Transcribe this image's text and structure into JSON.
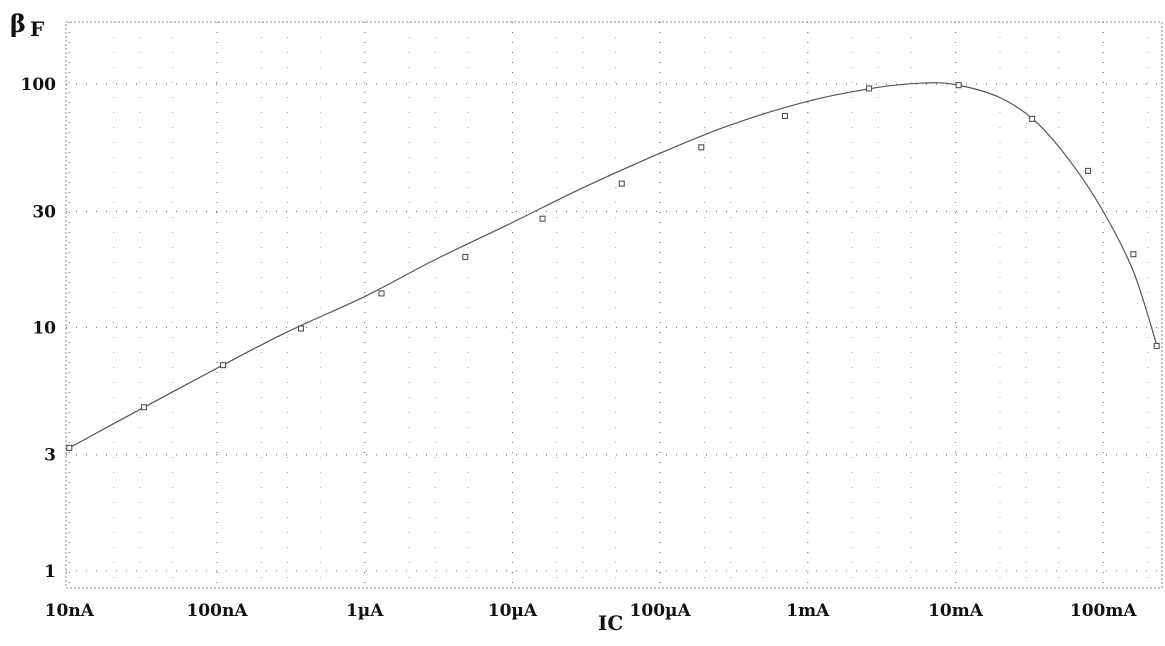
{
  "chart_data": {
    "type": "line",
    "x_scale": "log",
    "y_scale": "log",
    "xlim": [
      9.5e-09,
      0.25
    ],
    "ylim": [
      0.85,
      180
    ],
    "ylabel_symbol": "β",
    "ylabel_subscript": "F",
    "xlabel": "IC",
    "x_ticks": [
      {
        "value": 1e-08,
        "label": "10nA"
      },
      {
        "value": 1e-07,
        "label": "100nA"
      },
      {
        "value": 1e-06,
        "label": "1µA"
      },
      {
        "value": 1e-05,
        "label": "10µA"
      },
      {
        "value": 0.0001,
        "label": "100µA"
      },
      {
        "value": 0.001,
        "label": "1mA"
      },
      {
        "value": 0.01,
        "label": "10mA"
      },
      {
        "value": 0.1,
        "label": "100mA"
      }
    ],
    "y_ticks": [
      {
        "value": 1,
        "label": "1"
      },
      {
        "value": 3,
        "label": "3"
      },
      {
        "value": 10,
        "label": "10"
      },
      {
        "value": 30,
        "label": "30"
      },
      {
        "value": 100,
        "label": "100"
      }
    ],
    "grid": "dotted",
    "series": [
      {
        "color": "#555555",
        "x": [
          1e-08,
          3e-08,
          1e-07,
          3e-07,
          1e-06,
          3e-06,
          1e-05,
          3e-05,
          0.0001,
          0.0003,
          0.001,
          0.003,
          0.006,
          0.01,
          0.02,
          0.035,
          0.06,
          0.1,
          0.16,
          0.23
        ],
        "y": [
          3.2,
          4.6,
          6.8,
          9.6,
          13.4,
          19.0,
          27.0,
          37.5,
          52.0,
          68.0,
          85.0,
          97.0,
          101.0,
          99.5,
          88.0,
          70.0,
          48.0,
          30.0,
          17.0,
          8.5
        ]
      }
    ],
    "markers": {
      "x": [
        1e-08,
        3.2e-08,
        1.1e-07,
        3.7e-07,
        1.3e-06,
        4.8e-06,
        1.6e-05,
        5.5e-05,
        0.00019,
        0.0007,
        0.0026,
        0.0105,
        0.033,
        0.079,
        0.16,
        0.23
      ],
      "y": [
        3.2,
        4.7,
        7.0,
        9.9,
        13.8,
        19.5,
        28.0,
        39.0,
        55.0,
        74.0,
        96.0,
        99.0,
        72.0,
        44.0,
        20.0,
        8.4
      ]
    }
  }
}
